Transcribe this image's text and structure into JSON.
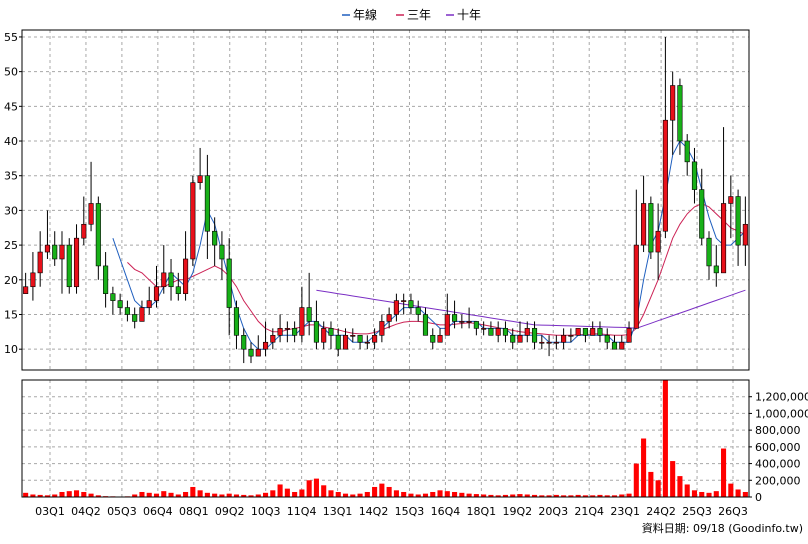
{
  "chart_data": {
    "type": "candlestick",
    "legend": [
      {
        "name": "年線",
        "color": "#1f5fbf"
      },
      {
        "name": "三年",
        "color": "#cc2255"
      },
      {
        "name": "十年",
        "color": "#7a2ec4"
      }
    ],
    "colors": {
      "up": "#e8101a",
      "down": "#18b018",
      "volume": "#ff0000",
      "grid": "#a8a8a8",
      "border": "#000000"
    },
    "price_axis": {
      "range": [
        7,
        56
      ],
      "ticks": [
        "10",
        "15",
        "20",
        "25",
        "30",
        "35",
        "40",
        "45",
        "50",
        "55"
      ],
      "side": "left"
    },
    "volume_axis": {
      "range": [
        0,
        1400000
      ],
      "ticks": [
        "0",
        "200,000",
        "400,000",
        "600,000",
        "800,000",
        "1,000,000",
        "1,200,000"
      ],
      "side": "right"
    },
    "x_labels": [
      "03Q1",
      "04Q2",
      "05Q3",
      "06Q4",
      "08Q1",
      "09Q2",
      "10Q3",
      "11Q4",
      "13Q1",
      "14Q2",
      "15Q3",
      "16Q4",
      "18Q1",
      "19Q2",
      "20Q3",
      "21Q4",
      "23Q1",
      "24Q2",
      "25Q3",
      "26Q3"
    ],
    "grid": true,
    "source_note": "資料日期: 09/18 (Goodinfo.tw)",
    "candles": [
      [
        18,
        19,
        21,
        18
      ],
      [
        19,
        21,
        24,
        17
      ],
      [
        21,
        24,
        27,
        19
      ],
      [
        24,
        25,
        30,
        23
      ],
      [
        25,
        23,
        27,
        22
      ],
      [
        23,
        25,
        27,
        18
      ],
      [
        25,
        19,
        26,
        18
      ],
      [
        19,
        26,
        28,
        18
      ],
      [
        26,
        28,
        32,
        25
      ],
      [
        28,
        31,
        37,
        27
      ],
      [
        31,
        22,
        32,
        20
      ],
      [
        22,
        18,
        24,
        16
      ],
      [
        18,
        17,
        19,
        15
      ],
      [
        17,
        16,
        18,
        15
      ],
      [
        16,
        15,
        17,
        14
      ],
      [
        15,
        14,
        16,
        13
      ],
      [
        14,
        16,
        17,
        14
      ],
      [
        16,
        17,
        19,
        15
      ],
      [
        17,
        19,
        22,
        16
      ],
      [
        19,
        21,
        25,
        18
      ],
      [
        21,
        19,
        23,
        17
      ],
      [
        19,
        18,
        21,
        17
      ],
      [
        18,
        23,
        27,
        17
      ],
      [
        23,
        34,
        35,
        22
      ],
      [
        34,
        35,
        39,
        33
      ],
      [
        35,
        27,
        38,
        23
      ],
      [
        27,
        25,
        29,
        22
      ],
      [
        25,
        23,
        27,
        20
      ],
      [
        23,
        16,
        26,
        12
      ],
      [
        16,
        12,
        17,
        10
      ],
      [
        12,
        10,
        13,
        8
      ],
      [
        10,
        9,
        11,
        8
      ],
      [
        9,
        10,
        12,
        9
      ],
      [
        10,
        11,
        14,
        9
      ],
      [
        11,
        12,
        13,
        10
      ],
      [
        12,
        13,
        15,
        11
      ],
      [
        13,
        13,
        14,
        11
      ],
      [
        13,
        12,
        14,
        11
      ],
      [
        12,
        16,
        19,
        11
      ],
      [
        16,
        14,
        21,
        12
      ],
      [
        14,
        11,
        17,
        10
      ],
      [
        11,
        13,
        14,
        10
      ],
      [
        13,
        12,
        14,
        10
      ],
      [
        12,
        10,
        13,
        9
      ],
      [
        10,
        12,
        13,
        10
      ],
      [
        12,
        12,
        13,
        11
      ],
      [
        12,
        11,
        12,
        10
      ],
      [
        11,
        11,
        12,
        10
      ],
      [
        11,
        12,
        13,
        10
      ],
      [
        12,
        14,
        15,
        11
      ],
      [
        14,
        15,
        16,
        13
      ],
      [
        15,
        17,
        18,
        14
      ],
      [
        17,
        17,
        18,
        15
      ],
      [
        17,
        16,
        18,
        15
      ],
      [
        16,
        15,
        17,
        14
      ],
      [
        15,
        12,
        16,
        12
      ],
      [
        12,
        11,
        13,
        10
      ],
      [
        11,
        12,
        13,
        11
      ],
      [
        12,
        15,
        18,
        12
      ],
      [
        15,
        14,
        17,
        13
      ],
      [
        14,
        14,
        15,
        13
      ],
      [
        14,
        14,
        16,
        13
      ],
      [
        14,
        13,
        14,
        12
      ],
      [
        13,
        13,
        14,
        12
      ],
      [
        13,
        12,
        14,
        12
      ],
      [
        12,
        13,
        14,
        11
      ],
      [
        13,
        12,
        14,
        11
      ],
      [
        12,
        11,
        13,
        10
      ],
      [
        11,
        12,
        14,
        11
      ],
      [
        12,
        13,
        14,
        11
      ],
      [
        13,
        11,
        14,
        10
      ],
      [
        11,
        11,
        12,
        10
      ],
      [
        11,
        11,
        12,
        9
      ],
      [
        11,
        11,
        12,
        10
      ],
      [
        11,
        12,
        13,
        10
      ],
      [
        12,
        12,
        13,
        11
      ],
      [
        12,
        13,
        13,
        12
      ],
      [
        13,
        12,
        13,
        11
      ],
      [
        12,
        13,
        14,
        12
      ],
      [
        13,
        12,
        14,
        11
      ],
      [
        12,
        11,
        13,
        10
      ],
      [
        11,
        10,
        12,
        10
      ],
      [
        10,
        11,
        12,
        10
      ],
      [
        11,
        13,
        14,
        11
      ],
      [
        13,
        25,
        33,
        13
      ],
      [
        25,
        31,
        35,
        24
      ],
      [
        31,
        24,
        32,
        23
      ],
      [
        24,
        27,
        31,
        20
      ],
      [
        27,
        43,
        55,
        26
      ],
      [
        43,
        48,
        50,
        38
      ],
      [
        48,
        40,
        49,
        38
      ],
      [
        40,
        37,
        41,
        35
      ],
      [
        37,
        33,
        39,
        31
      ],
      [
        33,
        26,
        36,
        25
      ],
      [
        26,
        22,
        27,
        20
      ],
      [
        22,
        21,
        25,
        19
      ],
      [
        21,
        31,
        42,
        21
      ],
      [
        31,
        32,
        35,
        26
      ],
      [
        32,
        25,
        33,
        22
      ],
      [
        25,
        28,
        32,
        22
      ]
    ],
    "volumes": [
      50000,
      30000,
      25000,
      20000,
      30000,
      60000,
      70000,
      80000,
      60000,
      40000,
      20000,
      10000,
      8000,
      6000,
      8000,
      30000,
      60000,
      50000,
      40000,
      70000,
      50000,
      30000,
      60000,
      120000,
      80000,
      50000,
      40000,
      30000,
      40000,
      30000,
      25000,
      20000,
      30000,
      50000,
      80000,
      150000,
      100000,
      60000,
      90000,
      200000,
      220000,
      140000,
      80000,
      60000,
      40000,
      30000,
      40000,
      60000,
      120000,
      160000,
      120000,
      80000,
      60000,
      40000,
      30000,
      40000,
      60000,
      80000,
      70000,
      60000,
      50000,
      40000,
      35000,
      30000,
      25000,
      20000,
      25000,
      30000,
      35000,
      30000,
      25000,
      20000,
      20000,
      25000,
      20000,
      20000,
      25000,
      20000,
      20000,
      25000,
      20000,
      20000,
      30000,
      40000,
      400000,
      700000,
      300000,
      200000,
      1400000,
      430000,
      250000,
      150000,
      80000,
      60000,
      50000,
      70000,
      580000,
      160000,
      90000,
      60000
    ],
    "year_line": [
      null,
      null,
      null,
      null,
      null,
      null,
      null,
      null,
      null,
      null,
      null,
      null,
      26,
      23,
      20,
      17,
      16,
      16,
      17,
      19,
      21,
      20,
      19,
      21,
      25,
      30,
      28,
      24,
      20,
      16,
      13,
      11,
      10,
      10,
      11,
      12,
      12,
      12,
      13,
      14,
      14,
      13,
      12,
      12,
      12,
      11,
      11,
      11,
      12,
      13,
      14,
      15,
      16,
      16,
      16,
      15,
      14,
      13,
      13,
      14,
      14,
      14,
      14,
      13,
      13,
      13,
      13,
      12,
      12,
      12,
      12,
      12,
      11,
      11,
      11,
      11,
      12,
      12,
      12,
      12,
      12,
      11,
      11,
      11,
      14,
      20,
      25,
      27,
      32,
      38,
      40,
      39,
      37,
      33,
      29,
      26,
      25,
      25,
      26,
      27
    ],
    "three_year": [
      null,
      null,
      null,
      null,
      null,
      null,
      null,
      null,
      null,
      null,
      null,
      null,
      null,
      null,
      22.5,
      21.5,
      21,
      20,
      19,
      19,
      19.5,
      20,
      20,
      20.5,
      21,
      21.5,
      22,
      21.5,
      20.5,
      19,
      17,
      15.5,
      14,
      13,
      12.5,
      12.5,
      12.8,
      13,
      13.2,
      13.5,
      13.5,
      13.2,
      13,
      12.8,
      12.5,
      12.3,
      12.2,
      12.2,
      12.4,
      12.8,
      13.2,
      13.6,
      13.9,
      14,
      14,
      13.9,
      13.7,
      13.5,
      13.5,
      13.6,
      13.7,
      13.8,
      13.7,
      13.5,
      13.3,
      13.1,
      12.9,
      12.7,
      12.5,
      12.4,
      12.3,
      12.2,
      12.1,
      12,
      12,
      12,
      12.1,
      12.1,
      12.2,
      12.2,
      12.1,
      12,
      12,
      12.1,
      13,
      15,
      17.5,
      20,
      23,
      26,
      28,
      29.5,
      30.5,
      31,
      30.5,
      29.5,
      28.5,
      27.5,
      27,
      26.5
    ]
  }
}
